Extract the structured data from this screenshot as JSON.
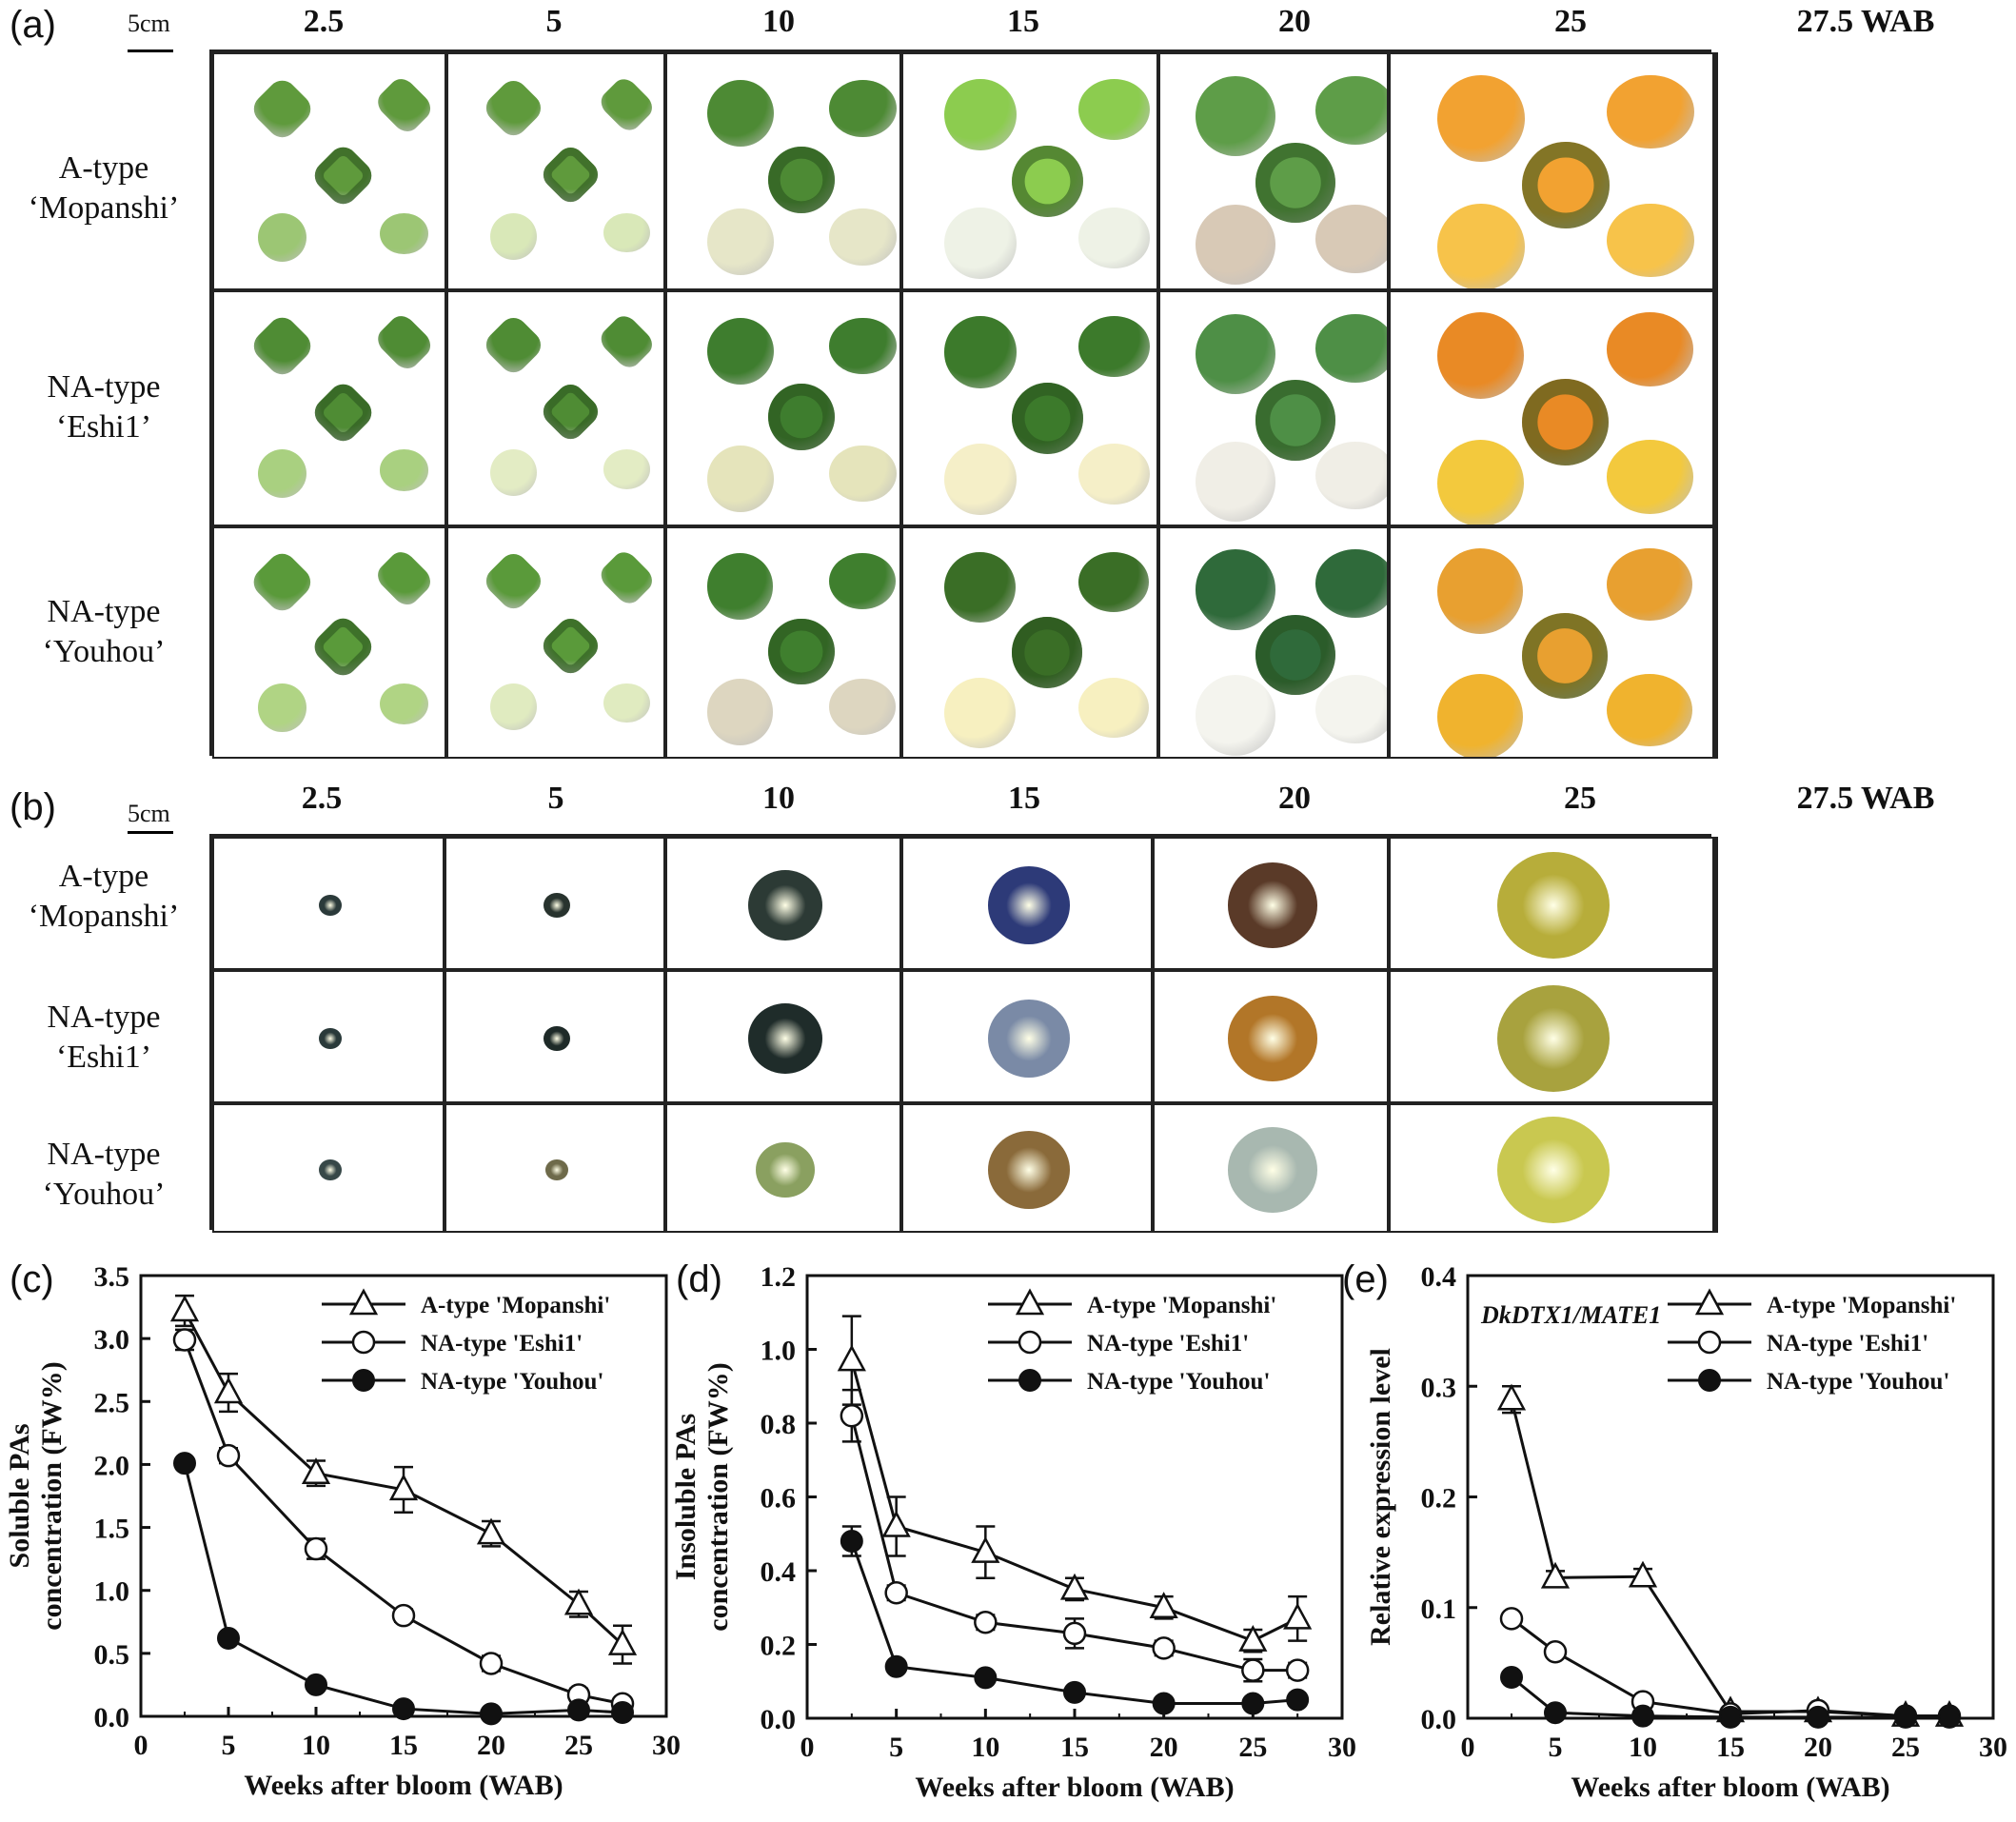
{
  "figure": {
    "panels": {
      "a": "(a)",
      "b": "(b)",
      "c": "(c)",
      "d": "(d)",
      "e": "(e)"
    },
    "scale_label": "5cm",
    "weeks": [
      "2.5",
      "5",
      "10",
      "15",
      "20",
      "25",
      "27.5 WAB"
    ],
    "rows": [
      {
        "line1": "A-type",
        "line2": "‘Mopanshi’"
      },
      {
        "line1": "NA-type",
        "line2": "‘Eshi1’"
      },
      {
        "line1": "NA-type",
        "line2": "‘Youhou’"
      }
    ]
  },
  "chart_data": [
    {
      "type": "line",
      "panel": "(c)",
      "xlabel": "Weeks after bloom (WAB)",
      "ylabel": "Soluble PAs concentration (FW%)",
      "ylabel_lines": [
        "Soluble PAs",
        "concentration (FW%)"
      ],
      "xlim": [
        0,
        30
      ],
      "ylim": [
        0,
        3.5
      ],
      "xticks": [
        "0",
        "5",
        "10",
        "15",
        "20",
        "25",
        "30"
      ],
      "yticks": [
        "0.0",
        "0.5",
        "1.0",
        "1.5",
        "2.0",
        "2.5",
        "3.0",
        "3.5"
      ],
      "x": [
        2.5,
        5,
        10,
        15,
        20,
        25,
        27.5
      ],
      "series": [
        {
          "name": "A-type 'Mopanshi'",
          "marker": "triangle-open",
          "values": [
            3.22,
            2.57,
            1.93,
            1.8,
            1.45,
            0.89,
            0.57
          ],
          "err": [
            0.12,
            0.15,
            0.1,
            0.18,
            0.1,
            0.1,
            0.15
          ]
        },
        {
          "name": "NA-type 'Eshi1'",
          "marker": "circle-open",
          "values": [
            2.99,
            2.07,
            1.33,
            0.8,
            0.42,
            0.17,
            0.1
          ],
          "err": [
            0.08,
            0.06,
            0.08,
            0.05,
            0.06,
            0.05,
            0.04
          ]
        },
        {
          "name": "NA-type 'Youhou'",
          "marker": "circle-filled",
          "values": [
            2.01,
            0.62,
            0.25,
            0.06,
            0.02,
            0.05,
            0.03
          ],
          "err": [
            0.04,
            0.03,
            0.02,
            0.01,
            0.01,
            0.01,
            0.01
          ]
        }
      ]
    },
    {
      "type": "line",
      "panel": "(d)",
      "xlabel": "Weeks after bloom (WAB)",
      "ylabel": "Insoluble PAs concentration (FW%)",
      "ylabel_lines": [
        "Insoluble PAs",
        "concentration (FW%)"
      ],
      "xlim": [
        0,
        30
      ],
      "ylim": [
        0,
        1.2
      ],
      "xticks": [
        "0",
        "5",
        "10",
        "15",
        "20",
        "25",
        "30"
      ],
      "yticks": [
        "0.0",
        "0.2",
        "0.4",
        "0.6",
        "0.8",
        "1.0",
        "1.2"
      ],
      "x": [
        2.5,
        5,
        10,
        15,
        20,
        25,
        27.5
      ],
      "series": [
        {
          "name": "A-type 'Mopanshi'",
          "marker": "triangle-open",
          "values": [
            0.97,
            0.52,
            0.45,
            0.35,
            0.3,
            0.21,
            0.27
          ],
          "err": [
            0.12,
            0.08,
            0.07,
            0.03,
            0.03,
            0.03,
            0.06
          ]
        },
        {
          "name": "NA-type 'Eshi1'",
          "marker": "circle-open",
          "values": [
            0.82,
            0.34,
            0.26,
            0.23,
            0.19,
            0.13,
            0.13
          ],
          "err": [
            0.07,
            0.02,
            0.02,
            0.04,
            0.02,
            0.03,
            0.02
          ]
        },
        {
          "name": "NA-type 'Youhou'",
          "marker": "circle-filled",
          "values": [
            0.48,
            0.14,
            0.11,
            0.07,
            0.04,
            0.04,
            0.05
          ],
          "err": [
            0.04,
            0.01,
            0.01,
            0.01,
            0.01,
            0.01,
            0.01
          ]
        }
      ]
    },
    {
      "type": "line",
      "panel": "(e)",
      "annotation": "DkDTX1/MATE1",
      "xlabel": "Weeks after bloom (WAB)",
      "ylabel": "Relative expression level",
      "ylabel_lines": [
        "Relative expression level"
      ],
      "xlim": [
        0,
        30
      ],
      "ylim": [
        0,
        0.4
      ],
      "xticks": [
        "0",
        "5",
        "10",
        "15",
        "20",
        "25",
        "30"
      ],
      "yticks": [
        "0.0",
        "0.1",
        "0.2",
        "0.3",
        "0.4"
      ],
      "x": [
        2.5,
        5,
        10,
        15,
        20,
        25,
        27.5
      ],
      "series": [
        {
          "name": "A-type 'Mopanshi'",
          "marker": "triangle-open",
          "values": [
            0.288,
            0.127,
            0.128,
            0.006,
            0.006,
            0.002,
            0.002
          ],
          "err": [
            0.012,
            0.006,
            0.007,
            0.002,
            0.002,
            0.001,
            0.001
          ]
        },
        {
          "name": "NA-type 'Eshi1'",
          "marker": "circle-open",
          "values": [
            0.09,
            0.06,
            0.015,
            0.004,
            0.007,
            0.002,
            0.002
          ],
          "err": [
            0.004,
            0.004,
            0.003,
            0.001,
            0.001,
            0.001,
            0.001
          ]
        },
        {
          "name": "NA-type 'Youhou'",
          "marker": "circle-filled",
          "values": [
            0.037,
            0.005,
            0.002,
            0.001,
            0.001,
            0.001,
            0.001
          ],
          "err": [
            0.003,
            0.001,
            0.001,
            0.001,
            0.001,
            0.001,
            0.001
          ]
        }
      ]
    }
  ]
}
